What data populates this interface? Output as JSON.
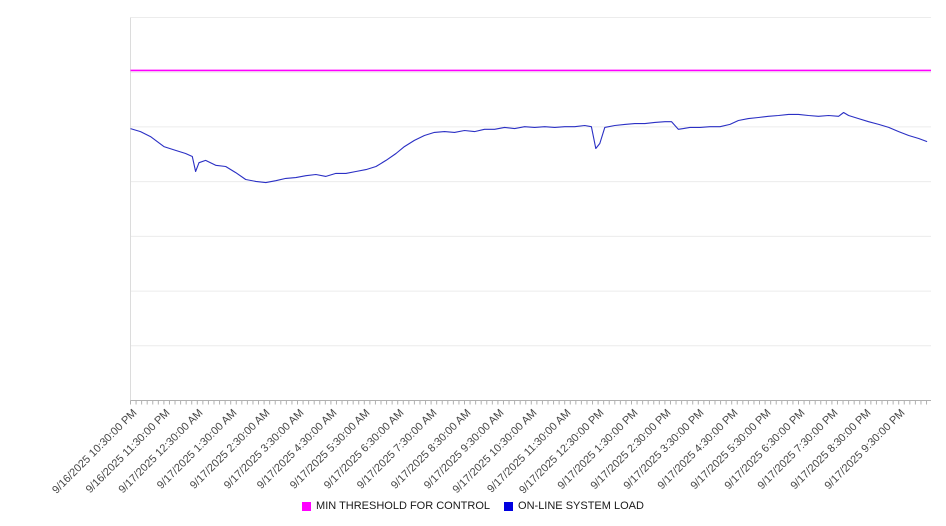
{
  "chart_data": {
    "type": "line",
    "title": "",
    "legend_position": "bottom",
    "x_axis": {
      "minor_tick_interval_minutes": 10,
      "labels": [
        "9/16/2025 10:30:00 PM",
        "9/16/2025 11:30:00 PM",
        "9/17/2025 12:30:00 AM",
        "9/17/2025 1:30:00 AM",
        "9/17/2025 2:30:00 AM",
        "9/17/2025 3:30:00 AM",
        "9/17/2025 4:30:00 AM",
        "9/17/2025 5:30:00 AM",
        "9/17/2025 6:30:00 AM",
        "9/17/2025 7:30:00 AM",
        "9/17/2025 8:30:00 AM",
        "9/17/2025 9:30:00 AM",
        "9/17/2025 10:30:00 AM",
        "9/17/2025 11:30:00 AM",
        "9/17/2025 12:30:00 PM",
        "9/17/2025 1:30:00 PM",
        "9/17/2025 2:30:00 PM",
        "9/17/2025 3:30:00 PM",
        "9/17/2025 4:30:00 PM",
        "9/17/2025 5:30:00 PM",
        "9/17/2025 6:30:00 PM",
        "9/17/2025 7:30:00 PM",
        "9/17/2025 8:30:00 PM",
        "9/17/2025 9:30:00 PM"
      ]
    },
    "y_axis": {
      "visible_labels": false,
      "relative_scale": [
        0,
        100
      ],
      "gridline_divisions": 7
    },
    "series": [
      {
        "name": "MIN THRESHOLD FOR CONTROL",
        "type": "constant-line",
        "color": "#ff00ff",
        "marker_color": "#ff00ff",
        "value": 86.2
      },
      {
        "name": "ON-LINE SYSTEM LOAD",
        "type": "line",
        "color": "#2a2fc4",
        "marker_color": "#0000e0",
        "x_unit": "hours-from-start",
        "points": [
          [
            0,
            71.0
          ],
          [
            0.3,
            70.2
          ],
          [
            0.6,
            68.9
          ],
          [
            1,
            66.3
          ],
          [
            1.35,
            65.3
          ],
          [
            1.65,
            64.5
          ],
          [
            1.85,
            63.7
          ],
          [
            1.95,
            59.8
          ],
          [
            2.05,
            62.1
          ],
          [
            2.25,
            62.7
          ],
          [
            2.55,
            61.4
          ],
          [
            2.85,
            61.1
          ],
          [
            3.15,
            59.5
          ],
          [
            3.45,
            57.7
          ],
          [
            3.75,
            57.2
          ],
          [
            4.05,
            56.9
          ],
          [
            4.35,
            57.4
          ],
          [
            4.65,
            58.0
          ],
          [
            4.95,
            58.2
          ],
          [
            5.25,
            58.7
          ],
          [
            5.55,
            59.0
          ],
          [
            5.85,
            58.5
          ],
          [
            6.15,
            59.3
          ],
          [
            6.45,
            59.3
          ],
          [
            6.75,
            59.8
          ],
          [
            7.05,
            60.3
          ],
          [
            7.35,
            61.1
          ],
          [
            7.65,
            62.7
          ],
          [
            7.95,
            64.5
          ],
          [
            8.2,
            66.3
          ],
          [
            8.5,
            67.9
          ],
          [
            8.8,
            69.2
          ],
          [
            9.1,
            70.0
          ],
          [
            9.4,
            70.2
          ],
          [
            9.7,
            70.0
          ],
          [
            10,
            70.5
          ],
          [
            10.3,
            70.2
          ],
          [
            10.6,
            70.8
          ],
          [
            10.9,
            70.8
          ],
          [
            11.2,
            71.3
          ],
          [
            11.5,
            71.0
          ],
          [
            11.8,
            71.5
          ],
          [
            12.1,
            71.3
          ],
          [
            12.4,
            71.5
          ],
          [
            12.7,
            71.3
          ],
          [
            13,
            71.5
          ],
          [
            13.3,
            71.5
          ],
          [
            13.6,
            71.8
          ],
          [
            13.8,
            71.5
          ],
          [
            13.93,
            65.8
          ],
          [
            14.05,
            67.1
          ],
          [
            14.2,
            71.3
          ],
          [
            14.5,
            71.8
          ],
          [
            14.8,
            72.1
          ],
          [
            15.1,
            72.3
          ],
          [
            15.4,
            72.3
          ],
          [
            15.7,
            72.6
          ],
          [
            16,
            72.8
          ],
          [
            16.2,
            72.8
          ],
          [
            16.4,
            70.8
          ],
          [
            16.55,
            71.0
          ],
          [
            16.75,
            71.3
          ],
          [
            17.05,
            71.3
          ],
          [
            17.35,
            71.5
          ],
          [
            17.65,
            71.5
          ],
          [
            17.95,
            72.1
          ],
          [
            18.2,
            73.1
          ],
          [
            18.5,
            73.6
          ],
          [
            18.8,
            73.9
          ],
          [
            19.1,
            74.2
          ],
          [
            19.4,
            74.4
          ],
          [
            19.7,
            74.7
          ],
          [
            20,
            74.7
          ],
          [
            20.3,
            74.4
          ],
          [
            20.6,
            74.2
          ],
          [
            20.9,
            74.4
          ],
          [
            21.2,
            74.2
          ],
          [
            21.35,
            75.2
          ],
          [
            21.5,
            74.4
          ],
          [
            21.8,
            73.6
          ],
          [
            22.1,
            72.8
          ],
          [
            22.4,
            72.1
          ],
          [
            22.7,
            71.3
          ],
          [
            23,
            70.2
          ],
          [
            23.3,
            69.2
          ],
          [
            23.6,
            68.4
          ],
          [
            23.85,
            67.6
          ]
        ]
      }
    ]
  }
}
